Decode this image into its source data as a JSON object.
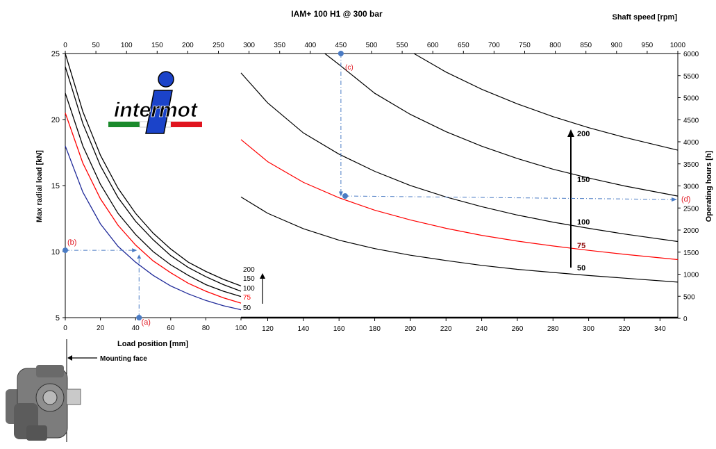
{
  "chart_data": {
    "type": "line",
    "title": "IAM+ 100 H1 @ 300 bar",
    "top_axis_label": "Shaft speed [rpm]",
    "left_panel": {
      "xlabel": "Load position [mm]",
      "ylabel": "Max radial load [kN]",
      "xlim": [
        0,
        100
      ],
      "ylim": [
        5,
        25
      ],
      "xticks": [
        "0",
        "20",
        "40",
        "60",
        "80",
        "100"
      ],
      "yticks": [
        "5",
        "10",
        "15",
        "20",
        "25"
      ],
      "x": [
        0,
        10,
        20,
        30,
        40,
        50,
        60,
        70,
        80,
        90,
        100
      ],
      "series": [
        {
          "name": "200",
          "color": "#000000",
          "values": [
            25.0,
            20.6,
            17.3,
            14.8,
            12.9,
            11.4,
            10.2,
            9.2,
            8.5,
            7.9,
            7.4
          ]
        },
        {
          "name": "150",
          "color": "#000000",
          "values": [
            24.0,
            19.7,
            16.5,
            14.1,
            12.3,
            10.9,
            9.7,
            8.8,
            8.1,
            7.5,
            7.0
          ]
        },
        {
          "name": "100",
          "color": "#000000",
          "values": [
            22.0,
            18.0,
            15.1,
            12.9,
            11.3,
            10.0,
            9.0,
            8.2,
            7.5,
            7.0,
            6.6
          ]
        },
        {
          "name": "75",
          "color": "#ff0000",
          "values": [
            20.5,
            16.7,
            14.0,
            12.0,
            10.5,
            9.3,
            8.4,
            7.6,
            7.0,
            6.5,
            6.1
          ]
        },
        {
          "name": "50",
          "color": "#1f2a99",
          "values": [
            18.0,
            14.5,
            12.1,
            10.4,
            9.2,
            8.2,
            7.4,
            6.8,
            6.3,
            5.9,
            5.6
          ]
        }
      ]
    },
    "right_panel": {
      "ylabel": "Operating hours [h]",
      "xlim": [
        105,
        350
      ],
      "ylim": [
        0,
        6000
      ],
      "xticks": [
        "120",
        "140",
        "160",
        "180",
        "200",
        "220",
        "240",
        "260",
        "280",
        "300",
        "320",
        "340"
      ],
      "yticks": [
        "0",
        "500",
        "1000",
        "1500",
        "2000",
        "2500",
        "3000",
        "3500",
        "4000",
        "4500",
        "5000",
        "5500",
        "6000"
      ],
      "shaft_speed_ticks": [
        "0",
        "50",
        "100",
        "150",
        "200",
        "250",
        "300",
        "350",
        "400",
        "450",
        "500",
        "550",
        "600",
        "650",
        "700",
        "750",
        "800",
        "850",
        "900",
        "950",
        "1000"
      ],
      "series": [
        {
          "name": "50",
          "color": "#000000",
          "x": [
            105,
            120,
            140,
            160,
            180,
            200,
            220,
            240,
            260,
            280,
            300,
            320,
            350
          ],
          "values": [
            2750,
            2380,
            2030,
            1770,
            1580,
            1430,
            1310,
            1200,
            1110,
            1040,
            970,
            910,
            820
          ]
        },
        {
          "name": "75",
          "color": "#ff0000",
          "x": [
            105,
            120,
            140,
            160,
            180,
            200,
            220,
            240,
            260,
            280,
            300,
            320,
            350
          ],
          "values": [
            4050,
            3550,
            3080,
            2730,
            2450,
            2230,
            2040,
            1880,
            1750,
            1640,
            1540,
            1450,
            1330
          ]
        },
        {
          "name": "100",
          "color": "#000000",
          "x": [
            105,
            120,
            140,
            160,
            180,
            200,
            220,
            240,
            260,
            280,
            300,
            320,
            350
          ],
          "values": [
            5560,
            4880,
            4200,
            3720,
            3330,
            3010,
            2750,
            2530,
            2340,
            2180,
            2040,
            1910,
            1740
          ]
        },
        {
          "name": "150",
          "color": "#000000",
          "x": [
            152,
            160,
            180,
            200,
            220,
            240,
            260,
            280,
            300,
            320,
            350
          ],
          "values": [
            6000,
            5750,
            5100,
            4620,
            4230,
            3900,
            3620,
            3380,
            3180,
            3000,
            2770
          ]
        },
        {
          "name": "200",
          "color": "#000000",
          "x": [
            202,
            220,
            240,
            260,
            280,
            300,
            320,
            350
          ],
          "values": [
            6000,
            5580,
            5190,
            4860,
            4570,
            4320,
            4100,
            3810
          ]
        }
      ]
    },
    "legend_left": [
      "200",
      "150",
      "100",
      "75",
      "50"
    ],
    "legend_right": [
      "200",
      "150",
      "100",
      "75",
      "50"
    ],
    "annotations": {
      "a": "(a)",
      "b": "(b)",
      "c": "(c)",
      "d": "(d)",
      "mounting_face": "Mounting face",
      "logo_text": "intermot"
    },
    "example": {
      "load_position": 42,
      "radial_load": 10.1,
      "shaft_speed": 450,
      "operating_hours": 2700
    }
  }
}
